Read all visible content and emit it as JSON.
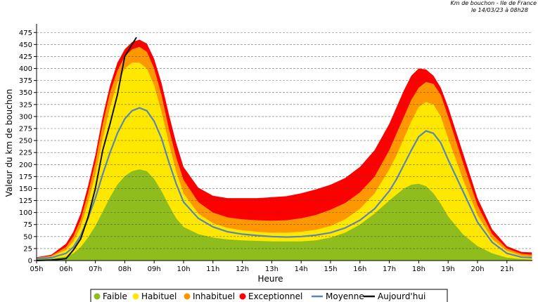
{
  "header": {
    "title": "Km de bouchon - Ile de France",
    "timestamp": "le 14/03/23 à 08h28"
  },
  "colors": {
    "faible": "#8fbd1e",
    "habituel": "#ffe800",
    "inhabituel": "#ff9800",
    "exceptionnel": "#ff0000",
    "moyenne": "#5a86b0",
    "aujourdhui": "#111111",
    "grid": "#444444"
  },
  "chart_data": {
    "type": "area",
    "title": "",
    "xlabel": "Heure",
    "ylabel": "Valeur du  km de bouchon",
    "xlim": [
      5,
      22
    ],
    "ylim": [
      0,
      490
    ],
    "x_ticks": [
      "05h",
      "06h",
      "07h",
      "08h",
      "09h",
      "10h",
      "11h",
      "12h",
      "13h",
      "14h",
      "15h",
      "16h",
      "17h",
      "18h",
      "19h",
      "20h",
      "21h"
    ],
    "y_ticks": [
      0,
      25,
      50,
      75,
      100,
      125,
      150,
      175,
      200,
      225,
      250,
      275,
      300,
      325,
      350,
      375,
      400,
      425,
      450,
      475
    ],
    "grid": true,
    "legend_position": "bottom",
    "hours": [
      5,
      5.5,
      6,
      6.25,
      6.5,
      6.75,
      7,
      7.25,
      7.5,
      7.75,
      8,
      8.25,
      8.5,
      8.75,
      9,
      9.25,
      9.5,
      9.75,
      10,
      10.5,
      11,
      11.5,
      12,
      12.5,
      13,
      13.5,
      14,
      14.5,
      15,
      15.5,
      16,
      16.5,
      17,
      17.25,
      17.5,
      17.75,
      18,
      18.25,
      18.5,
      18.75,
      19,
      19.5,
      20,
      20.5,
      21,
      21.5,
      21.85
    ],
    "series": [
      {
        "name": "Faible",
        "kind": "area",
        "values": [
          3,
          4,
          8,
          15,
          28,
          48,
          72,
          102,
          132,
          158,
          176,
          186,
          190,
          186,
          170,
          145,
          115,
          88,
          70,
          55,
          48,
          44,
          42,
          41,
          40,
          40,
          40,
          42,
          48,
          58,
          75,
          98,
          125,
          138,
          150,
          158,
          160,
          155,
          140,
          118,
          92,
          55,
          30,
          15,
          6,
          3,
          2
        ]
      },
      {
        "name": "Habituel",
        "kind": "area",
        "values": [
          5,
          8,
          22,
          40,
          70,
          120,
          180,
          255,
          320,
          370,
          400,
          412,
          412,
          400,
          365,
          310,
          245,
          185,
          140,
          98,
          78,
          68,
          63,
          60,
          58,
          58,
          60,
          64,
          72,
          86,
          108,
          140,
          190,
          220,
          255,
          290,
          320,
          330,
          325,
          300,
          255,
          170,
          95,
          45,
          20,
          10,
          8
        ]
      },
      {
        "name": "Inhabituel",
        "kind": "area",
        "values": [
          6,
          10,
          28,
          50,
          85,
          140,
          205,
          285,
          350,
          395,
          425,
          440,
          445,
          435,
          400,
          345,
          275,
          215,
          168,
          122,
          100,
          90,
          86,
          84,
          83,
          84,
          88,
          95,
          106,
          120,
          142,
          175,
          230,
          265,
          300,
          335,
          360,
          372,
          368,
          345,
          300,
          205,
          115,
          55,
          25,
          14,
          12
        ]
      },
      {
        "name": "Exceptionnel",
        "kind": "area",
        "values": [
          7,
          12,
          35,
          60,
          98,
          155,
          220,
          300,
          365,
          412,
          440,
          455,
          460,
          452,
          420,
          370,
          305,
          245,
          195,
          152,
          135,
          130,
          130,
          130,
          132,
          134,
          140,
          148,
          158,
          172,
          195,
          230,
          285,
          320,
          355,
          385,
          400,
          398,
          385,
          360,
          320,
          225,
          130,
          65,
          30,
          18,
          17
        ]
      },
      {
        "name": "Moyenne",
        "kind": "line",
        "values": [
          4,
          6,
          15,
          28,
          52,
          88,
          130,
          180,
          225,
          265,
          295,
          312,
          318,
          312,
          290,
          255,
          205,
          160,
          122,
          88,
          70,
          60,
          55,
          52,
          50,
          49,
          50,
          53,
          58,
          68,
          84,
          108,
          145,
          170,
          200,
          230,
          258,
          270,
          265,
          245,
          210,
          145,
          80,
          38,
          15,
          7,
          6
        ]
      },
      {
        "name": "Aujourd'hui",
        "kind": "line",
        "values": [
          0,
          1,
          4,
          22,
          45,
          90,
          150,
          230,
          285,
          345,
          425,
          450,
          465
        ]
      }
    ],
    "today_hours": [
      5,
      5.5,
      6,
      6.25,
      6.5,
      6.75,
      7,
      7.25,
      7.5,
      7.75,
      8,
      8.25,
      8.4
    ]
  },
  "legend": [
    {
      "label": "Faible",
      "color_key": "faible",
      "kind": "area"
    },
    {
      "label": "Habituel",
      "color_key": "habituel",
      "kind": "area"
    },
    {
      "label": "Inhabituel",
      "color_key": "inhabituel",
      "kind": "area"
    },
    {
      "label": "Exceptionnel",
      "color_key": "exceptionnel",
      "kind": "area"
    },
    {
      "label": "Moyenne",
      "color_key": "moyenne",
      "kind": "line"
    },
    {
      "label": "Aujourd'hui",
      "color_key": "aujourdhui",
      "kind": "line"
    }
  ]
}
